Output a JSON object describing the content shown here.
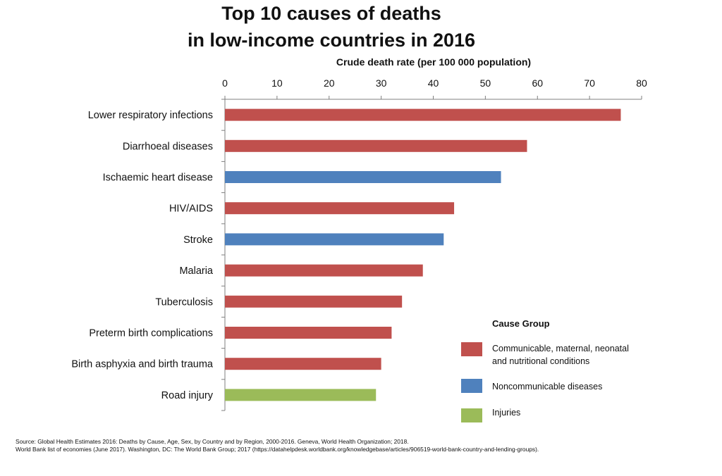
{
  "chart_data": {
    "type": "bar",
    "orientation": "horizontal",
    "title_line1": "Top 10 causes of deaths",
    "title_line2": "in low-income countries in 2016",
    "xlabel": "Crude death rate (per 100 000 population)",
    "xlim": [
      0,
      80
    ],
    "xticks": [
      0,
      10,
      20,
      30,
      40,
      50,
      60,
      70,
      80
    ],
    "x_axis_position": "top",
    "grid": false,
    "categories": [
      "Lower respiratory infections",
      "Diarrhoeal diseases",
      "Ischaemic heart disease",
      "HIV/AIDS",
      "Stroke",
      "Malaria",
      "Tuberculosis",
      "Preterm birth complications",
      "Birth asphyxia and birth trauma",
      "Road injury"
    ],
    "values": [
      76,
      58,
      53,
      44,
      42,
      38,
      34,
      32,
      30,
      29
    ],
    "groups": [
      "communicable",
      "communicable",
      "noncommunicable",
      "communicable",
      "noncommunicable",
      "communicable",
      "communicable",
      "communicable",
      "communicable",
      "injuries"
    ],
    "legend": {
      "title": "Cause Group",
      "placement": "bottom-right",
      "items": [
        {
          "key": "communicable",
          "label_line1": "Communicable, maternal, neonatal",
          "label_line2": "and nutritional conditions",
          "color": "#c0504d"
        },
        {
          "key": "noncommunicable",
          "label_line1": "Noncommunicable diseases",
          "label_line2": "",
          "color": "#4f81bd"
        },
        {
          "key": "injuries",
          "label_line1": "Injuries",
          "label_line2": "",
          "color": "#9bbb59"
        }
      ]
    }
  },
  "source": {
    "line1": "Source: Global Health Estimates 2016: Deaths by Cause, Age, Sex, by Country and by Region, 2000-2016. Geneva, World Health Organization; 2018.",
    "line2": "World Bank list of economies (June 2017). Washington, DC: The World Bank Group; 2017 (https://datahelpdesk.worldbank.org/knowledgebase/articles/906519-world-bank-country-and-lending-groups)."
  }
}
